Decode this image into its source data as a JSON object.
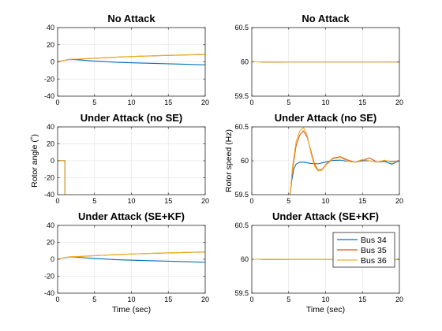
{
  "figure": {
    "shared_xlabel": "Time (sec)"
  },
  "colors": {
    "bus34": "#0072BD",
    "bus35": "#D95319",
    "bus36": "#EDB120",
    "grid": "#e6e6e6",
    "axes": "#262626"
  },
  "chart_data": [
    {
      "type": "line",
      "title": "No Attack",
      "xlabel": "",
      "ylabel": "",
      "xlim": [
        0,
        20
      ],
      "ylim": [
        -40,
        40
      ],
      "xticks": [
        0,
        5,
        10,
        15,
        20
      ],
      "yticks": [
        -40,
        -20,
        0,
        20,
        40
      ],
      "grid": true,
      "series": [
        {
          "color_key": "bus34",
          "x": [
            0,
            0.8,
            1.5,
            2,
            3,
            5,
            8,
            11,
            14,
            17,
            20
          ],
          "y": [
            0,
            1.5,
            2.6,
            2.8,
            2.2,
            1.0,
            -0.5,
            -1.3,
            -2.0,
            -2.7,
            -3.5
          ]
        },
        {
          "color_key": "bus35",
          "x": [
            0,
            0.8,
            1.5,
            2,
            3,
            5,
            8,
            11,
            14,
            17,
            20
          ],
          "y": [
            0,
            1.6,
            2.8,
            3.1,
            3.3,
            4.2,
            5.5,
            6.5,
            7.3,
            8.0,
            8.7
          ]
        },
        {
          "color_key": "bus36",
          "x": [
            0,
            0.8,
            1.5,
            2,
            3,
            5,
            8,
            11,
            14,
            17,
            20
          ],
          "y": [
            0,
            1.6,
            2.8,
            3.1,
            3.4,
            4.3,
            5.6,
            6.6,
            7.4,
            8.1,
            8.8
          ]
        }
      ]
    },
    {
      "type": "line",
      "title": "No Attack",
      "xlabel": "",
      "ylabel": "",
      "xlim": [
        0,
        20
      ],
      "ylim": [
        59.5,
        60.5
      ],
      "xticks": [
        0,
        5,
        10,
        15,
        20
      ],
      "yticks": [
        59.5,
        60,
        60.5
      ],
      "grid": true,
      "series": [
        {
          "color_key": "bus34",
          "x": [
            0,
            1,
            2,
            3,
            5,
            10,
            15,
            20
          ],
          "y": [
            60.0,
            60.0,
            59.995,
            59.998,
            59.999,
            59.999,
            59.999,
            59.999
          ]
        },
        {
          "color_key": "bus35",
          "x": [
            0,
            1,
            2,
            3,
            5,
            10,
            15,
            20
          ],
          "y": [
            60.0,
            60.0,
            59.996,
            59.998,
            59.999,
            59.999,
            59.999,
            59.999
          ]
        },
        {
          "color_key": "bus36",
          "x": [
            0,
            1,
            2,
            3,
            5,
            10,
            15,
            20
          ],
          "y": [
            60.0,
            60.0,
            59.996,
            59.998,
            59.999,
            59.999,
            59.999,
            59.999
          ]
        }
      ]
    },
    {
      "type": "line",
      "title": "Under Attack (no SE)",
      "xlabel": "",
      "ylabel": "Rotor angle (˚)",
      "xlim": [
        0,
        20
      ],
      "ylim": [
        -40,
        40
      ],
      "xticks": [
        0,
        5,
        10,
        15,
        20
      ],
      "yticks": [
        -40,
        -20,
        0,
        20,
        40
      ],
      "grid": true,
      "series": [
        {
          "color_key": "bus34",
          "x": [
            0,
            0.6,
            1.0,
            1.0
          ],
          "y": [
            0,
            0.2,
            0.2,
            -40
          ]
        },
        {
          "color_key": "bus35",
          "x": [
            0,
            0.6,
            1.0,
            1.0
          ],
          "y": [
            0,
            0.2,
            0.2,
            -40
          ]
        },
        {
          "color_key": "bus36",
          "x": [
            0,
            0.6,
            1.0,
            1.0
          ],
          "y": [
            0,
            0.2,
            0.2,
            -40
          ]
        }
      ]
    },
    {
      "type": "line",
      "title": "Under Attack (no SE)",
      "xlabel": "",
      "ylabel": "Rotor speed (Hz)",
      "xlim": [
        0,
        20
      ],
      "ylim": [
        59.5,
        60.5
      ],
      "xticks": [
        0,
        5,
        10,
        15,
        20
      ],
      "yticks": [
        59.5,
        60,
        60.5
      ],
      "grid": true,
      "series": [
        {
          "color_key": "bus34",
          "x": [
            5.2,
            5.4,
            5.7,
            6,
            6.5,
            7,
            7.5,
            8,
            9,
            10,
            11,
            12,
            13,
            14,
            15,
            16,
            17,
            18,
            19,
            20
          ],
          "y": [
            59.5,
            59.7,
            59.88,
            59.95,
            59.98,
            59.98,
            59.97,
            59.96,
            59.955,
            59.98,
            60.005,
            60.01,
            59.99,
            59.98,
            60.0,
            60.0,
            59.98,
            59.99,
            59.95,
            60.0
          ]
        },
        {
          "color_key": "bus35",
          "x": [
            5.2,
            5.5,
            6,
            6.5,
            7,
            7.5,
            8,
            8.5,
            9,
            9.5,
            10,
            11,
            12,
            13,
            14,
            15,
            16,
            17,
            18,
            19,
            20
          ],
          "y": [
            59.5,
            59.85,
            60.22,
            60.38,
            60.44,
            60.35,
            60.15,
            59.95,
            59.86,
            59.87,
            59.94,
            60.04,
            60.06,
            60.01,
            59.98,
            60.01,
            60.04,
            59.98,
            60.0,
            59.99,
            60.0
          ]
        },
        {
          "color_key": "bus36",
          "x": [
            5.2,
            5.5,
            6,
            6.5,
            7,
            7.5,
            8,
            8.5,
            9,
            9.5,
            10,
            11,
            12,
            13,
            14,
            15,
            16,
            17,
            18,
            19,
            20
          ],
          "y": [
            59.5,
            59.9,
            60.28,
            60.44,
            60.49,
            60.38,
            60.12,
            59.92,
            59.85,
            59.86,
            59.93,
            60.03,
            60.05,
            59.99,
            59.98,
            60.02,
            60.0,
            59.98,
            60.01,
            59.98,
            60.0
          ]
        }
      ]
    },
    {
      "type": "line",
      "title": "Under Attack (SE+KF)",
      "xlabel": "Time (sec)",
      "ylabel": "",
      "xlim": [
        0,
        20
      ],
      "ylim": [
        -40,
        40
      ],
      "xticks": [
        0,
        5,
        10,
        15,
        20
      ],
      "yticks": [
        -40,
        -20,
        0,
        20,
        40
      ],
      "grid": true,
      "series": [
        {
          "color_key": "bus34",
          "x": [
            0,
            0.8,
            1.5,
            2,
            3,
            5,
            8,
            11,
            14,
            17,
            20
          ],
          "y": [
            0,
            1.5,
            2.6,
            2.8,
            2.2,
            1.0,
            -0.5,
            -1.3,
            -2.0,
            -2.7,
            -3.5
          ]
        },
        {
          "color_key": "bus35",
          "x": [
            0,
            0.8,
            1.5,
            2,
            3,
            5,
            8,
            11,
            14,
            17,
            20
          ],
          "y": [
            0,
            1.6,
            2.8,
            3.1,
            3.3,
            4.2,
            5.5,
            6.5,
            7.3,
            8.0,
            8.7
          ]
        },
        {
          "color_key": "bus36",
          "x": [
            0,
            0.8,
            1.5,
            2,
            3,
            5,
            8,
            11,
            14,
            17,
            20
          ],
          "y": [
            0,
            1.6,
            2.8,
            3.1,
            3.4,
            4.3,
            5.6,
            6.6,
            7.4,
            8.1,
            8.8
          ]
        }
      ]
    },
    {
      "type": "line",
      "title": "Under Attack (SE+KF)",
      "xlabel": "Time (sec)",
      "ylabel": "",
      "xlim": [
        0,
        20
      ],
      "ylim": [
        59.5,
        60.5
      ],
      "xticks": [
        0,
        5,
        10,
        15,
        20
      ],
      "yticks": [
        59.5,
        60,
        60.5
      ],
      "grid": true,
      "legend": {
        "position": "upper-right",
        "entries": [
          "Bus 34",
          "Bus 35",
          "Bus 36"
        ]
      },
      "series": [
        {
          "name": "Bus 34",
          "color_key": "bus34",
          "x": [
            0,
            1,
            2,
            3,
            5,
            10,
            15,
            20
          ],
          "y": [
            60.0,
            60.0,
            59.995,
            59.998,
            59.999,
            59.999,
            59.999,
            59.999
          ]
        },
        {
          "name": "Bus 35",
          "color_key": "bus35",
          "x": [
            0,
            1,
            2,
            3,
            5,
            10,
            15,
            20
          ],
          "y": [
            60.0,
            60.0,
            59.996,
            59.998,
            59.999,
            59.999,
            59.999,
            59.999
          ]
        },
        {
          "name": "Bus 36",
          "color_key": "bus36",
          "x": [
            0,
            1,
            2,
            3,
            5,
            10,
            15,
            20
          ],
          "y": [
            60.0,
            60.0,
            59.996,
            59.998,
            59.999,
            59.999,
            59.999,
            59.999
          ]
        }
      ]
    }
  ]
}
